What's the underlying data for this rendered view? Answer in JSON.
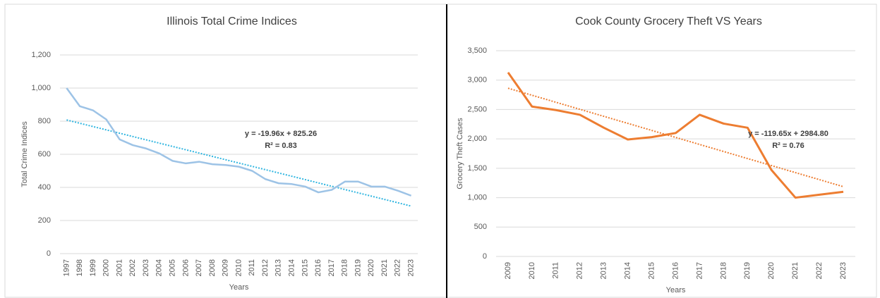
{
  "chart_data": [
    {
      "type": "line",
      "title": "Illinois Total Crime Indices",
      "x_label": "Years",
      "y_label": "Total Crime Indices",
      "categories": [
        "1997",
        "1998",
        "1999",
        "2000",
        "2001",
        "2002",
        "2003",
        "2004",
        "2005",
        "2006",
        "2007",
        "2008",
        "2009",
        "2010",
        "2011",
        "2012",
        "2013",
        "2014",
        "2015",
        "2016",
        "2017",
        "2018",
        "2019",
        "2020",
        "2021",
        "2022",
        "2023"
      ],
      "series": [
        {
          "name": "Total Crime Indices",
          "color": "#9dc3e6",
          "values": [
            1000,
            890,
            865,
            810,
            690,
            655,
            635,
            605,
            560,
            545,
            555,
            540,
            535,
            525,
            500,
            450,
            425,
            420,
            405,
            370,
            385,
            435,
            435,
            405,
            405,
            380,
            350
          ]
        }
      ],
      "trendline_color": "#2fb5e0",
      "annotations": [
        "y = -19.96x + 825.26",
        "R² = 0.83"
      ],
      "ylim": [
        0,
        1200
      ],
      "yticks": [
        0,
        200,
        400,
        600,
        800,
        {
          "value": 1000,
          "label": "1,000"
        },
        {
          "value": 1200,
          "label": "1,200"
        }
      ],
      "grid": true
    },
    {
      "type": "line",
      "title": "Cook County Grocery Theft VS Years",
      "x_label": "Years",
      "y_label": "Grocery Theft Cases",
      "categories": [
        "2009",
        "2010",
        "2011",
        "2012",
        "2013",
        "2014",
        "2015",
        "2016",
        "2017",
        "2018",
        "2019",
        "2020",
        "2021",
        "2022",
        "2023"
      ],
      "series": [
        {
          "name": "Grocery Theft Cases",
          "color": "#ed7d31",
          "values": [
            3130,
            2550,
            2490,
            2410,
            2190,
            1990,
            2030,
            2100,
            2410,
            2260,
            2190,
            1470,
            1000,
            1050,
            1100
          ]
        }
      ],
      "trendline_color": "#ed7d31",
      "annotations": [
        "y = -119.65x + 2984.80",
        "R² = 0.76"
      ],
      "ylim": [
        0,
        3500
      ],
      "yticks": [
        0,
        500,
        {
          "value": 1000,
          "label": "1,000"
        },
        {
          "value": 1500,
          "label": "1,500"
        },
        {
          "value": 2000,
          "label": "2,000"
        },
        {
          "value": 2500,
          "label": "2,500"
        },
        {
          "value": 3000,
          "label": "3,000"
        },
        {
          "value": 3500,
          "label": "3,500"
        }
      ],
      "grid": true
    }
  ]
}
